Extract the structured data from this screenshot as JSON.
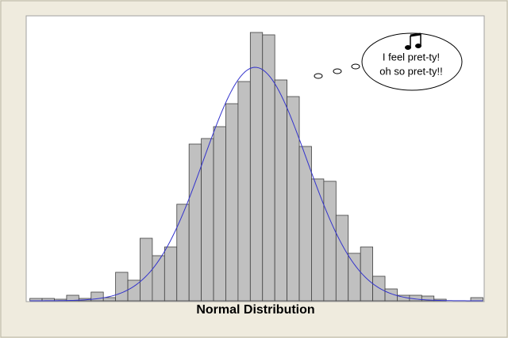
{
  "chart_data": {
    "type": "histogram",
    "title": "Normal Distribution",
    "annotation": [
      "I feel pret-ty!",
      "oh so pret-ty!!"
    ],
    "bins": [
      0,
      1,
      2,
      3,
      4,
      5,
      6,
      7,
      8,
      9,
      10,
      11,
      12,
      13,
      14,
      15,
      16,
      17,
      18,
      19,
      20,
      21,
      22,
      23,
      24,
      25,
      26,
      27,
      28,
      29,
      30,
      31,
      32,
      33,
      34,
      35,
      36,
      37
    ],
    "values": [
      3,
      3,
      2,
      7,
      3,
      11,
      4,
      36,
      26,
      79,
      57,
      68,
      122,
      198,
      205,
      220,
      249,
      277,
      339,
      336,
      279,
      258,
      195,
      154,
      151,
      108,
      60,
      68,
      31,
      15,
      7,
      7,
      6,
      2,
      0,
      0,
      4
    ],
    "color": "#c0c0c0",
    "fit": {
      "mean": 18.4,
      "sd": 4.2,
      "peak": 295,
      "color": "#3333cc"
    },
    "xlim": [
      -0.3,
      37.1
    ],
    "ylim": [
      0,
      360
    ]
  }
}
